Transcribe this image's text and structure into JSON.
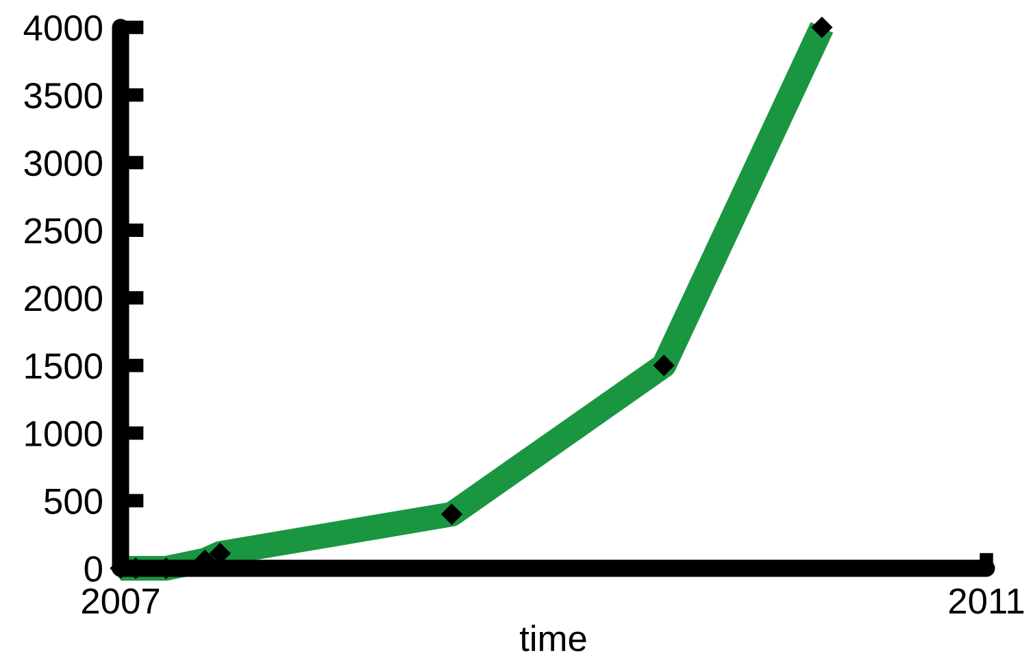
{
  "chart_data": {
    "type": "line",
    "xlabel": "time",
    "x": [
      2007.0,
      2007.07,
      2007.21,
      2007.39,
      2007.46,
      2008.53,
      2009.51,
      2010.24
    ],
    "series": [
      {
        "color": "#1a9641",
        "values": [
          0,
          0,
          0,
          60,
          110,
          400,
          1500,
          4000
        ]
      }
    ],
    "xlim": [
      2007,
      2011
    ],
    "xticks": [
      2007,
      2011
    ],
    "ylim": [
      0,
      4000
    ],
    "yticks": [
      0,
      500,
      1000,
      1500,
      2000,
      2500,
      3000,
      3500,
      4000
    ],
    "marker": "diamond",
    "line_style": "solid",
    "grid": false,
    "legend": false
  }
}
